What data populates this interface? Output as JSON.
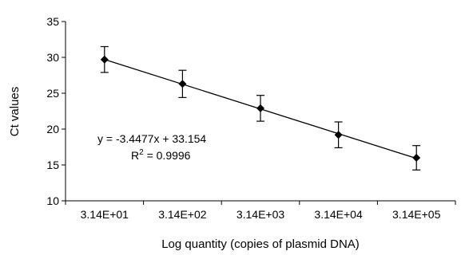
{
  "chart_data": {
    "type": "scatter",
    "x": [
      "3.14E+01",
      "3.14E+02",
      "3.14E+03",
      "3.14E+04",
      "3.14E+05"
    ],
    "series": [
      {
        "values": [
          29.7,
          26.3,
          22.9,
          19.2,
          16.0
        ],
        "errors": [
          1.8,
          1.9,
          1.8,
          1.8,
          1.7
        ]
      }
    ],
    "trendline": {
      "slope": -3.4477,
      "intercept": 33.154
    },
    "xlabel": "Log quantity (copies of plasmid DNA)",
    "ylabel": "Ct values",
    "ylim": [
      10,
      35
    ],
    "yticks": [
      10,
      15,
      20,
      25,
      30,
      35
    ],
    "grid": false,
    "legend": "none"
  },
  "annotations": {
    "equation": "y = -3.4477x + 33.154",
    "r2_prefix": "R",
    "r2_sup": "2",
    "r2_value": " = 0.9996"
  }
}
